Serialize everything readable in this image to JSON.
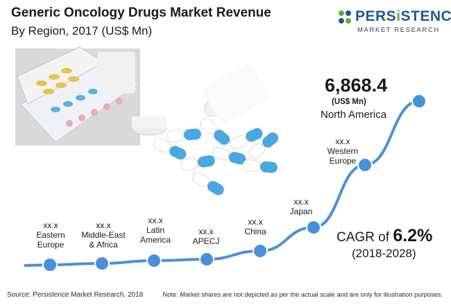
{
  "header": {
    "title": "Generic Oncology Drugs Market Revenue",
    "subtitle": "By Region, 2017 (US$ Mn)"
  },
  "logo": {
    "name_start": "PERS",
    "name_i": "i",
    "name_end": "STENCE",
    "sub": "MARKET RESEARCH"
  },
  "highlight": {
    "value": "6,868.4",
    "unit": "(US$ Mn)",
    "region": "North America"
  },
  "cagr": {
    "prefix": "CAGR of ",
    "value": "6.2%",
    "period": "(2018-2028)"
  },
  "chart_data": {
    "type": "line",
    "title": "Generic Oncology Drugs Market Revenue",
    "subtitle": "By Region, 2017 (US$ Mn)",
    "categories": [
      "Eastern Europe",
      "Middle-East & Africa",
      "Latin America",
      "APECJ",
      "China",
      "Japan",
      "Western Europe",
      "North America"
    ],
    "value_labels": [
      "xx.x",
      "xx.x",
      "xx.x",
      "xx.x",
      "xx.x",
      "xx.x",
      "xx.x",
      "6,868.4"
    ],
    "known_values": {
      "North America": 6868.4
    },
    "note": "Market shares are not depicted as per the actual scale"
  },
  "labels": [
    {
      "value": "xx.x",
      "line1": "Eastern",
      "line2": "Europe"
    },
    {
      "value": "xx.x",
      "line1": "Middle-East",
      "line2": "& Africa"
    },
    {
      "value": "xx.x",
      "line1": "Latin",
      "line2": "America"
    },
    {
      "value": "xx.x",
      "line1": "APECJ",
      "line2": ""
    },
    {
      "value": "xx.x",
      "line1": "China",
      "line2": ""
    },
    {
      "value": "xx.x",
      "line1": "Japan",
      "line2": ""
    },
    {
      "value": "xx.x",
      "line1": "Western",
      "line2": "Europe"
    }
  ],
  "footer": {
    "source": "Source: Persistence Market Research, 2018",
    "note": "Note: Market shares are not depicted as per the actual scale and are only for illustration purposes."
  },
  "colors": {
    "line": "#4a90d9",
    "marker": "#4a90d9",
    "brand_blue": "#1a5a96",
    "brand_green": "#6aa83a"
  }
}
